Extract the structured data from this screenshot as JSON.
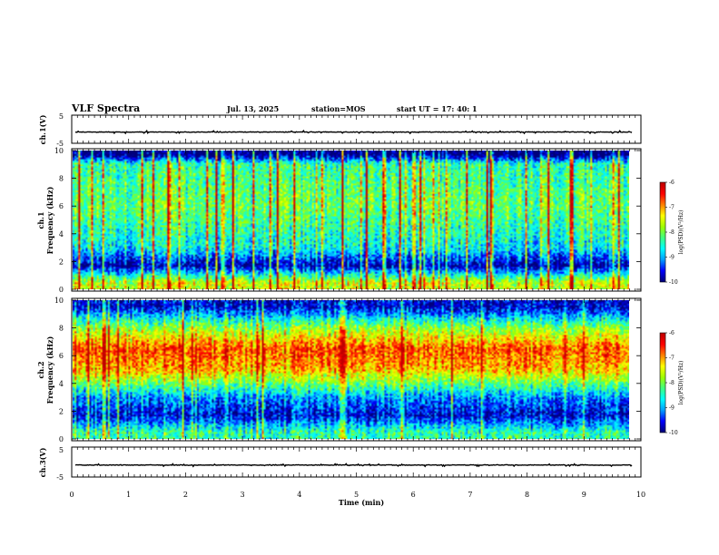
{
  "header": {
    "title": "VLF Spectra",
    "date": "Jul. 13, 2025",
    "station": "station=MOS",
    "start_ut": "start UT =  17: 40: 1"
  },
  "colors": {
    "colormap": [
      "#00007a",
      "#0000ff",
      "#00a0ff",
      "#00ffff",
      "#40ff80",
      "#a0ff00",
      "#ffff00",
      "#ff8000",
      "#ff0000",
      "#c00000",
      "#ffffff"
    ]
  },
  "chart_data": [
    {
      "type": "line",
      "panel": "ch1-waveform",
      "ylabel": "ch.1(V)",
      "yticks": [
        "5",
        "-5"
      ],
      "ylim": [
        -5,
        5
      ],
      "xlim": [
        0,
        10
      ],
      "series": [
        {
          "values_description_level": -1.0
        }
      ]
    },
    {
      "type": "heatmap",
      "panel": "ch1-spectrogram",
      "ylabel": "ch.1\nFrequency (kHz)",
      "yticks": [
        "0",
        "2",
        "4",
        "6",
        "8",
        "10"
      ],
      "ylim": [
        0,
        10
      ],
      "xlim": [
        0,
        10
      ],
      "colorbar": {
        "label": "log(PSD)(V²/Hz)",
        "ticks": [
          "-6",
          "-7",
          "-8",
          "-9",
          "-10"
        ],
        "range": [
          -10,
          -6
        ]
      },
      "band_profile": [
        {
          "f": 0.5,
          "level": -7.5
        },
        {
          "f": 1.7,
          "level": -9.8
        },
        {
          "f": 3.0,
          "level": -8.6
        },
        {
          "f": 6.0,
          "level": -8.0
        },
        {
          "f": 9.0,
          "level": -8.3
        },
        {
          "f": 9.7,
          "level": -10.0
        }
      ]
    },
    {
      "type": "heatmap",
      "panel": "ch2-spectrogram",
      "ylabel": "ch.2\nFrequency (kHz)",
      "yticks": [
        "0",
        "2",
        "4",
        "6",
        "8",
        "10"
      ],
      "ylim": [
        0,
        10
      ],
      "xlim": [
        0,
        10
      ],
      "colorbar": {
        "label": "log(PSD)(V²/Hz)",
        "ticks": [
          "-6",
          "-7",
          "-8",
          "-9",
          "-10"
        ],
        "range": [
          -10,
          -6
        ]
      },
      "band_profile": [
        {
          "f": 0.5,
          "level": -8.3
        },
        {
          "f": 1.7,
          "level": -9.6
        },
        {
          "f": 3.0,
          "level": -9.0
        },
        {
          "f": 5.0,
          "level": -7.0
        },
        {
          "f": 6.5,
          "level": -6.6
        },
        {
          "f": 8.0,
          "level": -7.8
        },
        {
          "f": 9.5,
          "level": -9.6
        }
      ]
    },
    {
      "type": "line",
      "panel": "ch3-waveform",
      "ylabel": "ch.3(V)",
      "yticks": [
        "5",
        "-5"
      ],
      "ylim": [
        -5,
        5
      ],
      "xlim": [
        0,
        10
      ],
      "series": [
        {
          "values_description_level": -1.0
        }
      ]
    }
  ],
  "xaxis": {
    "label": "Time (min)",
    "ticks": [
      "0",
      "1",
      "2",
      "3",
      "4",
      "5",
      "6",
      "7",
      "8",
      "9",
      "10"
    ],
    "range": [
      0,
      10
    ]
  }
}
